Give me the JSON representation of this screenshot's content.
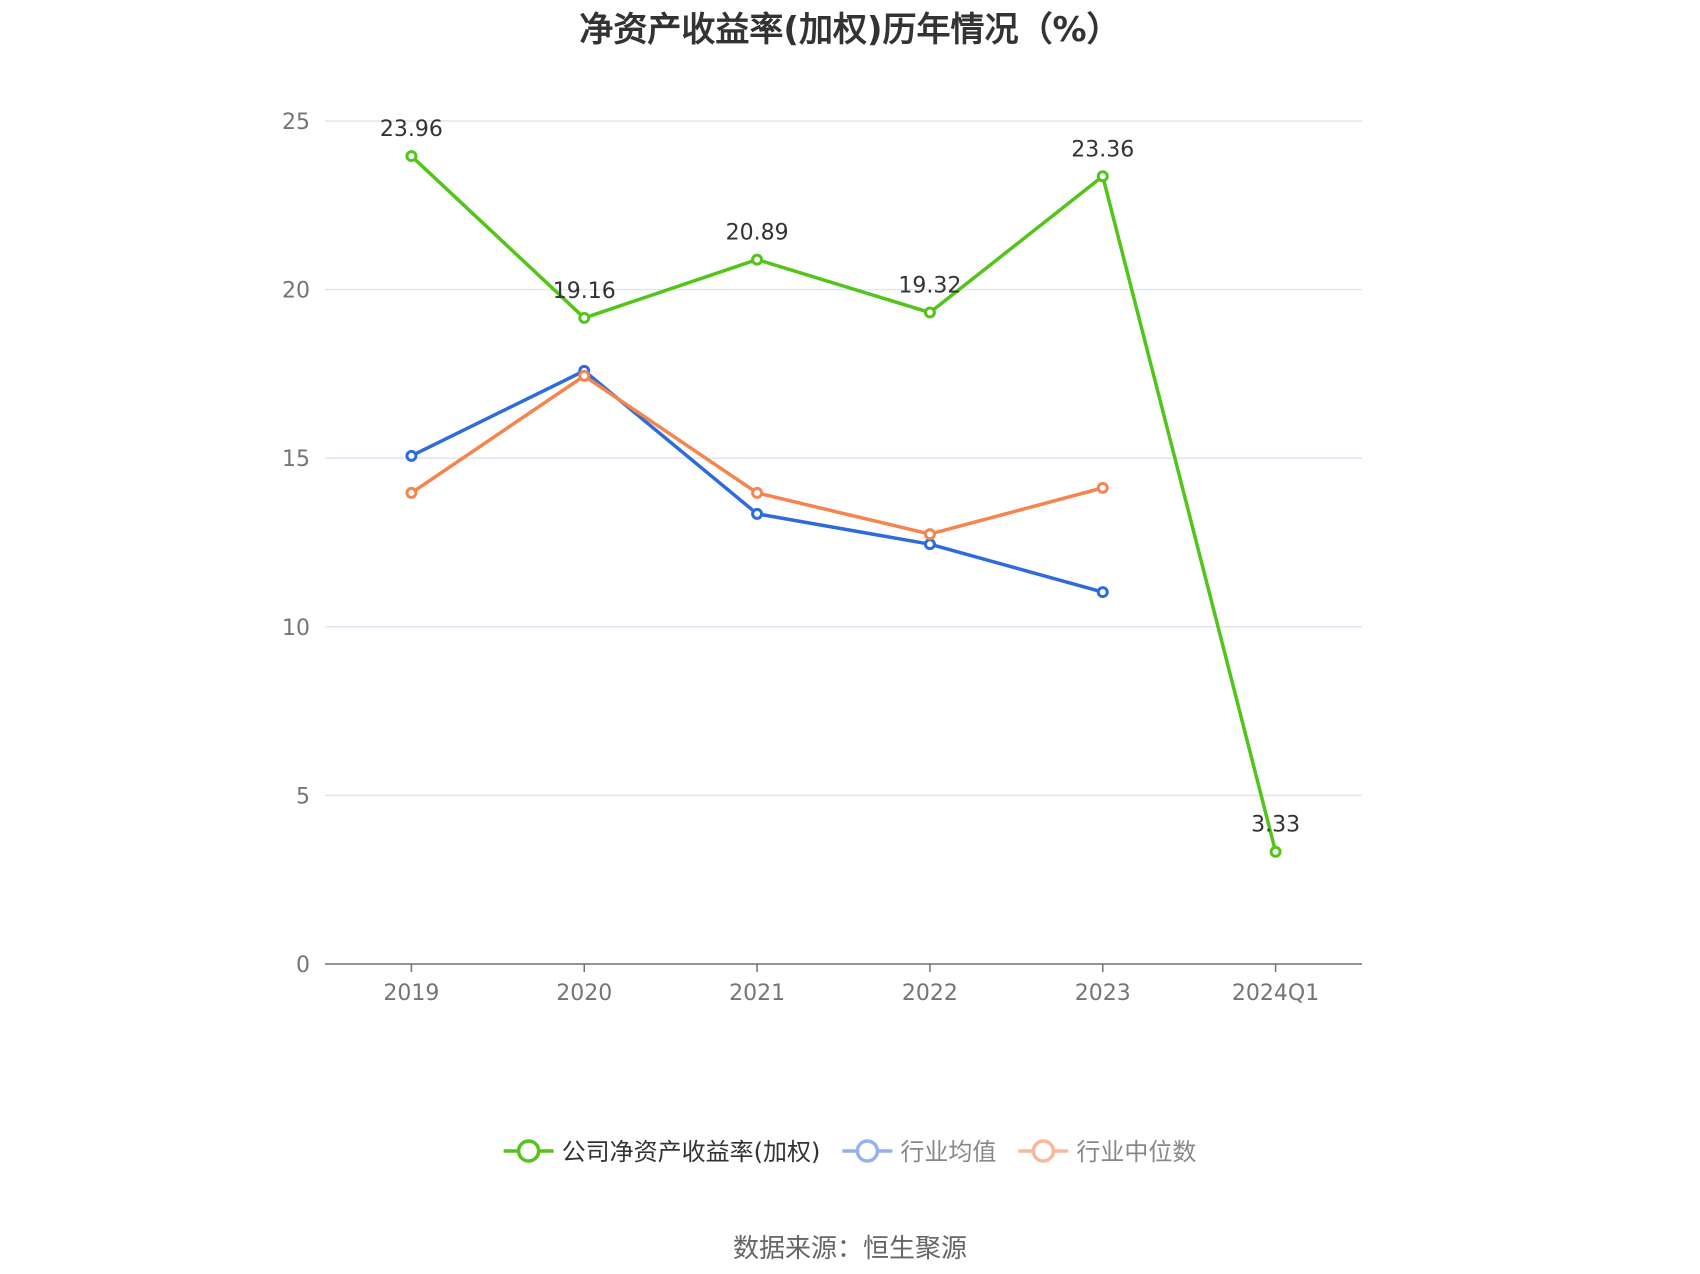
{
  "chart_data": {
    "type": "line",
    "title": "净资产收益率(加权)历年情况（%）",
    "categories": [
      "2019",
      "2020",
      "2021",
      "2022",
      "2023",
      "2024Q1"
    ],
    "ylim": [
      0,
      25
    ],
    "yticks": [
      0,
      5,
      10,
      15,
      20,
      25
    ],
    "grid": true,
    "legend_position": "bottom",
    "series": [
      {
        "name": "公司净资产收益率(加权)",
        "color": "#52c41a",
        "values": [
          23.96,
          19.16,
          20.89,
          19.32,
          23.36,
          3.33
        ],
        "labels": [
          "23.96",
          "19.16",
          "20.89",
          "19.32",
          "23.36",
          "3.33"
        ]
      },
      {
        "name": "行业均值",
        "color": "#2f6bdb",
        "legend_color": "#93b2ee",
        "values": [
          15.07,
          17.59,
          13.35,
          12.45,
          11.03,
          null
        ]
      },
      {
        "name": "行业中位数",
        "color": "#f5844e",
        "legend_color": "#f8b89a",
        "values": [
          13.97,
          17.44,
          13.97,
          12.75,
          14.12,
          null
        ]
      }
    ]
  },
  "source": "数据来源：恒生聚源"
}
